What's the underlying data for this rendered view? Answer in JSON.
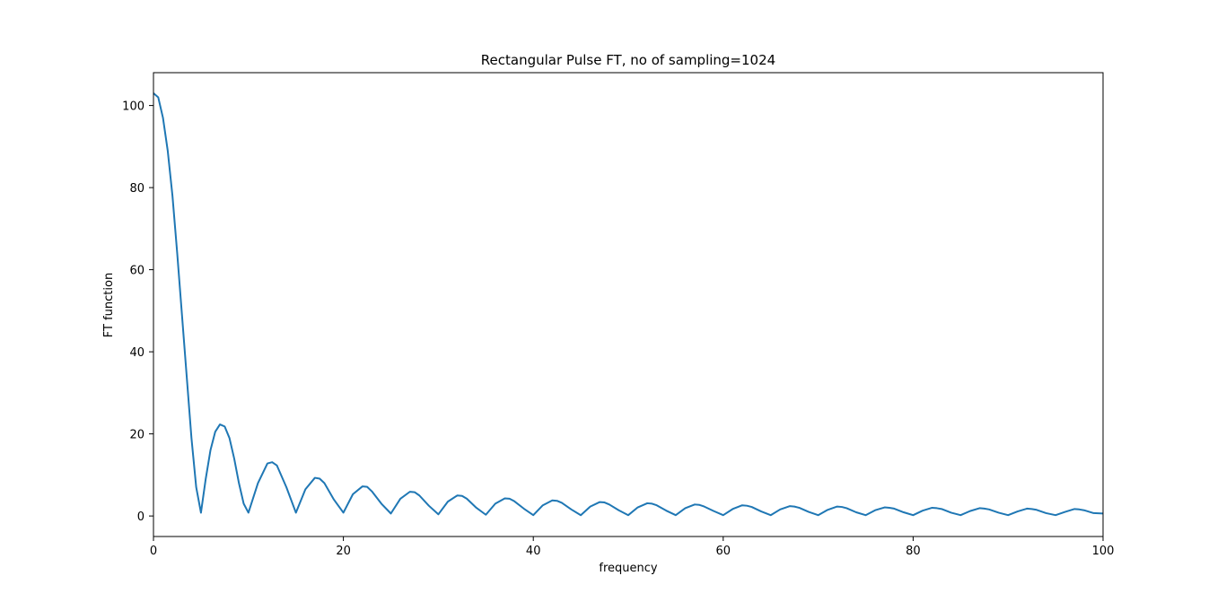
{
  "chart_data": {
    "type": "line",
    "title": "Rectangular Pulse FT, no of sampling=1024",
    "xlabel": "frequency",
    "ylabel": "FT function",
    "xlim": [
      0,
      100
    ],
    "ylim": [
      -5,
      108
    ],
    "xticks": [
      0,
      20,
      40,
      60,
      80,
      100
    ],
    "yticks": [
      0,
      20,
      40,
      60,
      80,
      100
    ],
    "xtick_labels": [
      "0",
      "20",
      "40",
      "60",
      "80",
      "100"
    ],
    "ytick_labels": [
      "0",
      "20",
      "40",
      "60",
      "80",
      "100"
    ],
    "grid": false,
    "legend": "none",
    "series": [
      {
        "color": "#1f77b4",
        "x": [
          0,
          0.5,
          1,
          1.5,
          2,
          2.5,
          3,
          3.5,
          4,
          4.5,
          5,
          5.5,
          6,
          6.5,
          7,
          7.5,
          8,
          8.5,
          9,
          9.5,
          10,
          11,
          12,
          12.5,
          13,
          14,
          15,
          16,
          17,
          17.5,
          18,
          19,
          20,
          21,
          22,
          22.5,
          23,
          24,
          25,
          26,
          27,
          27.5,
          28,
          29,
          30,
          31,
          32,
          32.5,
          33,
          34,
          35,
          36,
          37,
          37.5,
          38,
          39,
          40,
          41,
          42,
          42.5,
          43,
          44,
          45,
          46,
          47,
          47.5,
          48,
          49,
          50,
          51,
          52,
          52.5,
          53,
          54,
          55,
          56,
          57,
          57.5,
          58,
          59,
          60,
          61,
          62,
          62.5,
          63,
          64,
          65,
          66,
          67,
          67.5,
          68,
          69,
          70,
          71,
          72,
          72.5,
          73,
          74,
          75,
          76,
          77,
          77.5,
          78,
          79,
          80,
          81,
          82,
          82.5,
          83,
          84,
          85,
          86,
          87,
          87.5,
          88,
          89,
          90,
          91,
          92,
          92.5,
          93,
          94,
          95,
          96,
          97,
          97.5,
          98,
          99,
          100
        ],
        "y": [
          103,
          102,
          97,
          89,
          78,
          64,
          49,
          34,
          19,
          7,
          0.8,
          9,
          16,
          20.5,
          22.3,
          21.8,
          19,
          14,
          8,
          3,
          0.8,
          8,
          12.8,
          13.1,
          12.3,
          7,
          0.8,
          6.5,
          9.3,
          9.1,
          8,
          4,
          0.8,
          5.3,
          7.2,
          7.1,
          6,
          3,
          0.6,
          4.2,
          5.9,
          5.8,
          5,
          2.5,
          0.4,
          3.5,
          5.0,
          4.9,
          4.2,
          2,
          0.3,
          3,
          4.3,
          4.2,
          3.6,
          1.8,
          0.2,
          2.6,
          3.8,
          3.7,
          3.2,
          1.6,
          0.2,
          2.3,
          3.4,
          3.3,
          2.8,
          1.4,
          0.2,
          2.1,
          3.1,
          3.0,
          2.6,
          1.3,
          0.2,
          1.9,
          2.8,
          2.7,
          2.3,
          1.2,
          0.2,
          1.7,
          2.6,
          2.5,
          2.2,
          1.1,
          0.2,
          1.6,
          2.4,
          2.3,
          2,
          1,
          0.2,
          1.5,
          2.3,
          2.2,
          1.9,
          0.9,
          0.2,
          1.4,
          2.1,
          2.0,
          1.8,
          0.9,
          0.2,
          1.3,
          2.0,
          1.9,
          1.7,
          0.8,
          0.2,
          1.2,
          1.9,
          1.8,
          1.6,
          0.8,
          0.2,
          1.1,
          1.8,
          1.7,
          1.5,
          0.7,
          0.2,
          1.0,
          1.7,
          1.6,
          1.4,
          0.7,
          0.6
        ]
      }
    ]
  }
}
